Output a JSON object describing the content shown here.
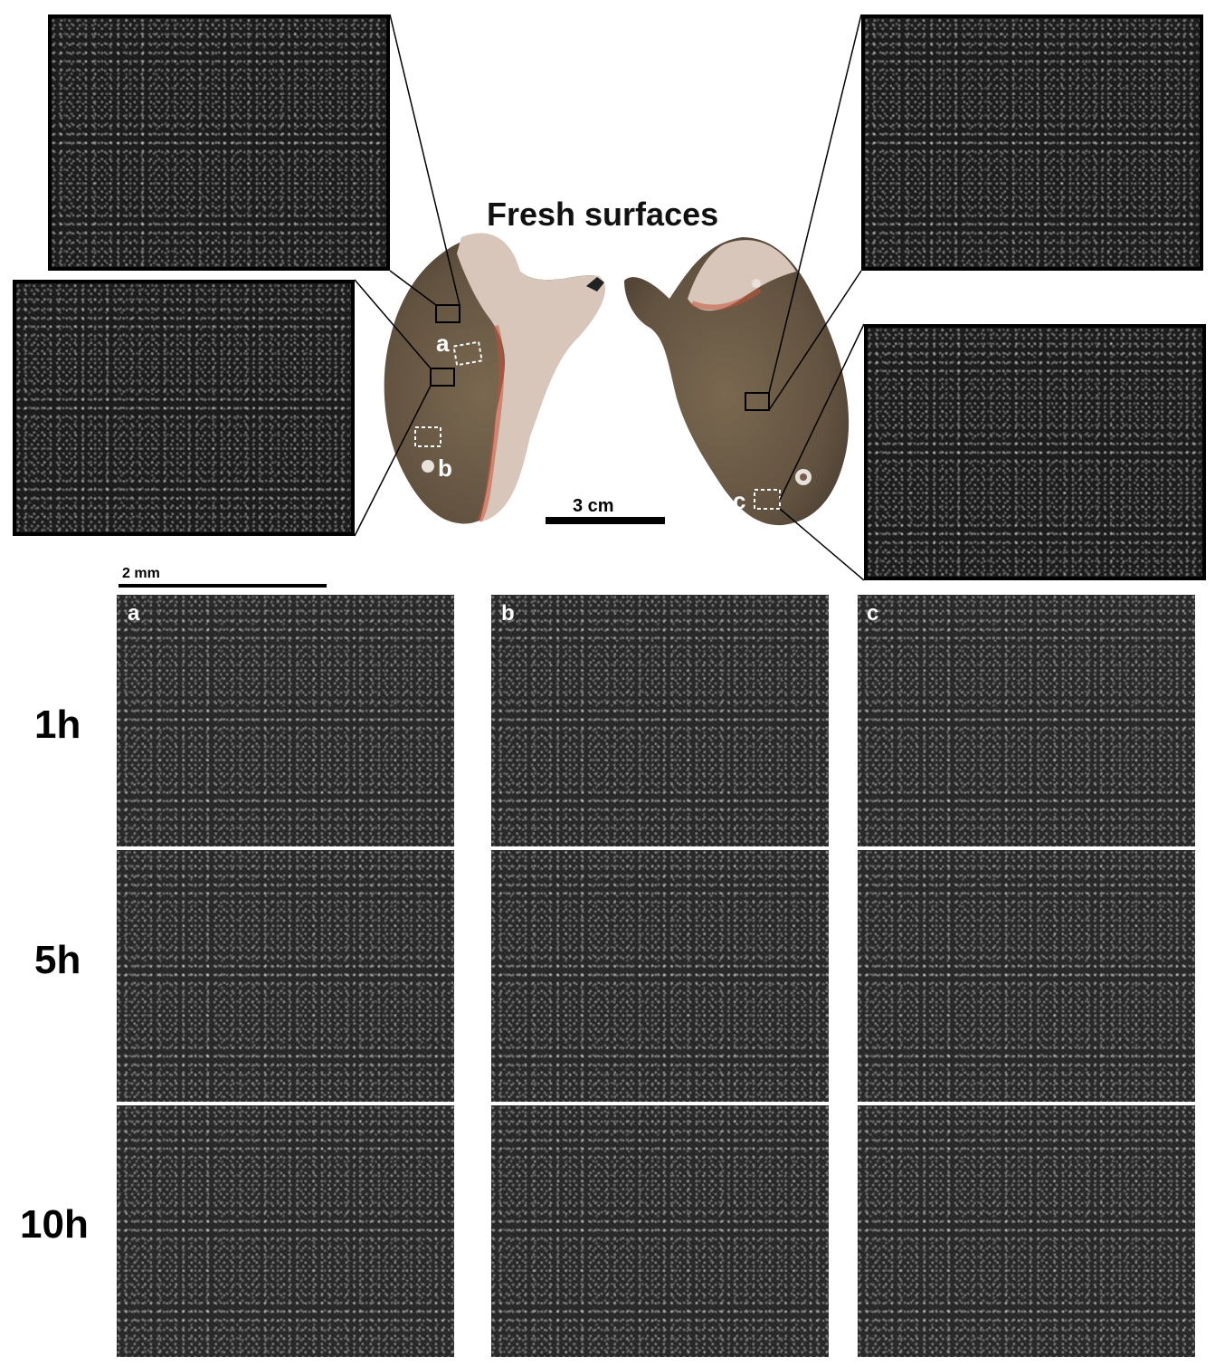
{
  "figure": {
    "title": "Fresh surfaces",
    "flint_scale": "3 cm",
    "micro_scale": "2 mm",
    "stone_labels": [
      "a",
      "b",
      "c"
    ],
    "column_labels": [
      "a",
      "b",
      "c"
    ],
    "row_labels": [
      "1h",
      "5h",
      "10h"
    ],
    "colors": {
      "background": "#ffffff",
      "micrograph": "#2a2a2a",
      "flint_body": "#6b5a44",
      "cortex": "#d9c6bb",
      "outline": "#000000"
    }
  }
}
